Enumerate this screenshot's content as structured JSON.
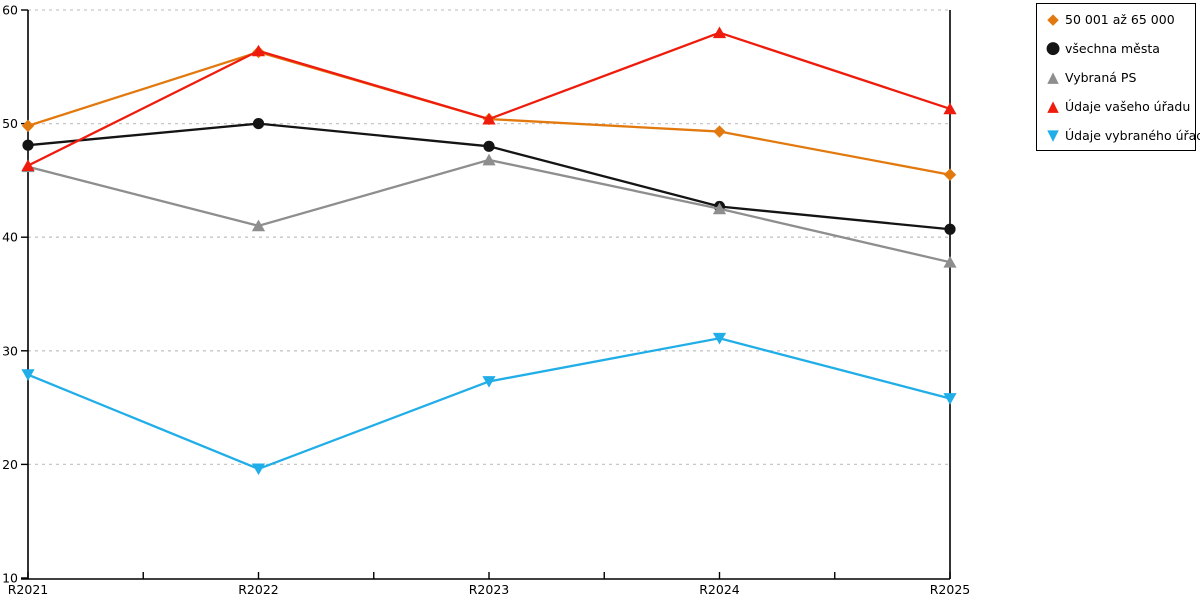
{
  "chart_data": {
    "type": "line",
    "title": "",
    "categories": [
      "R2021",
      "R2022",
      "R2023",
      "R2024",
      "R2025"
    ],
    "y_ticks": [
      10,
      20,
      30,
      40,
      50,
      60
    ],
    "ylim": [
      10,
      60
    ],
    "grid": "horizontal-dashed",
    "legend_position": "top-right-outside",
    "series": [
      {
        "name": "50 001 až 65 000",
        "marker": "diamond",
        "color": "#E2790F",
        "values": [
          49.8,
          56.3,
          50.4,
          49.3,
          45.5
        ]
      },
      {
        "name": "všechna města",
        "marker": "circle",
        "color": "#141414",
        "values": [
          48.1,
          50.0,
          48.0,
          42.7,
          40.7
        ]
      },
      {
        "name": "Vybraná PS",
        "marker": "triangle-up",
        "color": "#8E8E8E",
        "values": [
          46.2,
          41.0,
          46.8,
          42.5,
          37.8
        ]
      },
      {
        "name": "Údaje vašeho úřadu",
        "marker": "triangle-up",
        "color": "#EE1C0C",
        "values": [
          46.3,
          56.4,
          50.4,
          58.0,
          51.3
        ]
      },
      {
        "name": "Údaje vybraného úřadu",
        "marker": "triangle-down",
        "color": "#21AEE8",
        "values": [
          27.9,
          19.6,
          27.3,
          31.1,
          25.8
        ]
      }
    ]
  },
  "style": {
    "axis_color": "#000000",
    "gridline_color": "#C6C6C6",
    "legend_border_color": "#000000",
    "background": "#FFFFFF"
  },
  "legend_glyphs": {
    "diamond": "◆",
    "circle": "●",
    "triangle-up": "▲",
    "triangle-down": "▼"
  }
}
